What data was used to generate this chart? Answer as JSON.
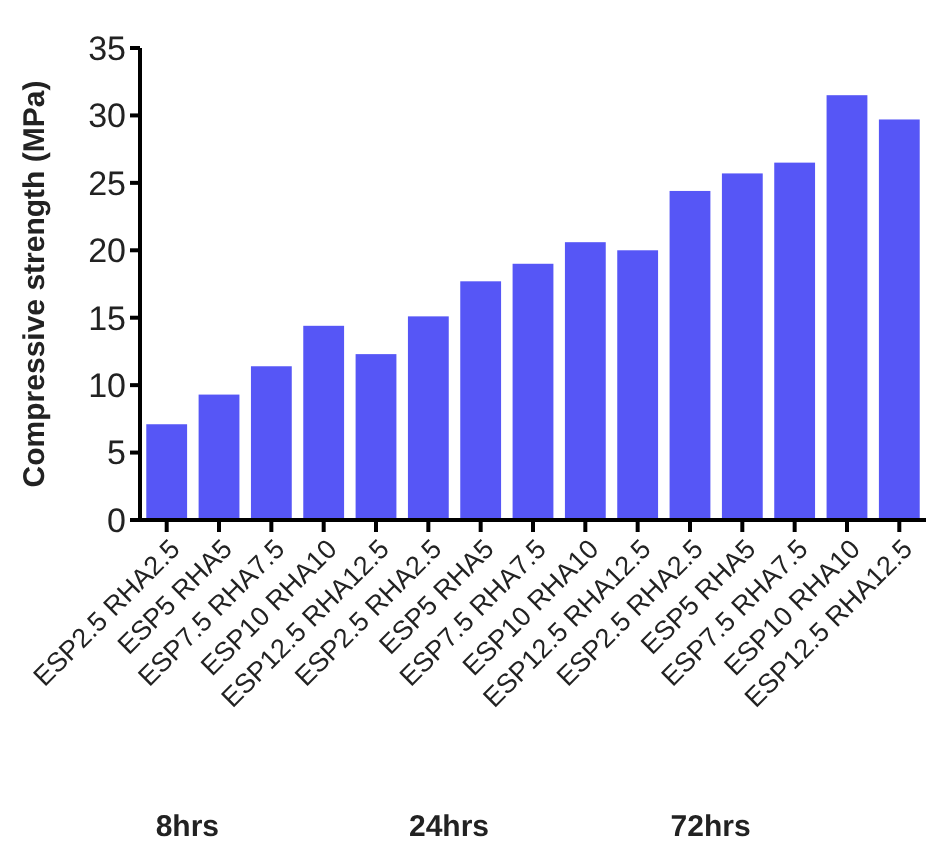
{
  "chart_data": {
    "type": "bar",
    "ylabel": "Compressive strength (MPa)",
    "categories": [
      "ESP2.5 RHA2.5",
      "ESP5 RHA5",
      "ESP7.5 RHA7.5",
      "ESP10 RHA10",
      "ESP12.5 RHA12.5",
      "ESP2.5 RHA2.5",
      "ESP5 RHA5",
      "ESP7.5 RHA7.5",
      "ESP10 RHA10",
      "ESP12.5 RHA12.5",
      "ESP2.5 RHA2.5",
      "ESP5 RHA5",
      "ESP7.5 RHA7.5",
      "ESP10 RHA10",
      "ESP12.5 RHA12.5"
    ],
    "values": [
      7.1,
      9.3,
      11.4,
      14.4,
      12.3,
      15.1,
      17.7,
      19.0,
      20.6,
      20.0,
      24.4,
      25.7,
      26.5,
      31.5,
      29.7
    ],
    "color": "#5656f6",
    "ylim": [
      0,
      35
    ],
    "yticks": [
      0,
      5,
      10,
      15,
      20,
      25,
      30,
      35
    ],
    "grid": false,
    "annotations": [
      "8hrs",
      "24hrs",
      "72hrs"
    ]
  }
}
